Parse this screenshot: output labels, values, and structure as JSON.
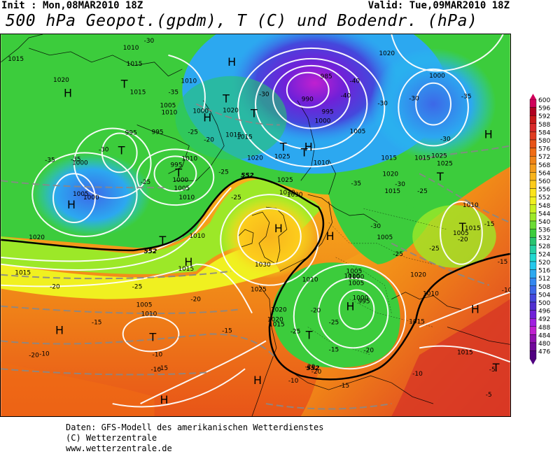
{
  "header": {
    "init": "Init : Mon,08MAR2010 18Z",
    "valid": "Valid: Tue,09MAR2010 18Z",
    "title": "500 hPa Geopot.(gpdm), T (C) und Bodendr. (hPa)"
  },
  "legend": {
    "labels": [
      "600",
      "596",
      "592",
      "588",
      "584",
      "580",
      "576",
      "572",
      "568",
      "564",
      "560",
      "556",
      "552",
      "548",
      "544",
      "540",
      "536",
      "532",
      "528",
      "524",
      "520",
      "516",
      "512",
      "508",
      "504",
      "500",
      "496",
      "492",
      "488",
      "484",
      "480",
      "476"
    ],
    "colors": [
      "#d0005a",
      "#b00020",
      "#c81818",
      "#d82828",
      "#e03c20",
      "#e85418",
      "#f06c14",
      "#f08418",
      "#f49c1c",
      "#f8b41c",
      "#fccc1c",
      "#fce41c",
      "#f0f020",
      "#c8f020",
      "#9ce828",
      "#6cdc34",
      "#3ccc3c",
      "#28c470",
      "#24d0a4",
      "#20d8d0",
      "#24c8ec",
      "#2ca8f0",
      "#3488f0",
      "#3c68e8",
      "#4448dc",
      "#5030d0",
      "#7020d8",
      "#a020e0",
      "#c020d0",
      "#9010b0",
      "#70089a",
      "#500080"
    ]
  },
  "pressure_labels": [
    "1010",
    "1015",
    "1015",
    "1020",
    "1015",
    "1010",
    "1010",
    "1005",
    "1000",
    "995",
    "995",
    "995",
    "1000",
    "1005",
    "1010",
    "1000",
    "1005",
    "1015",
    "1020",
    "1015",
    "1020",
    "1025",
    "1010",
    "1030",
    "1025",
    "1030",
    "1020",
    "1025",
    "1020",
    "1015",
    "1015",
    "1010",
    "1005",
    "1000",
    "995",
    "1000",
    "1005",
    "1010",
    "1015",
    "1020",
    "985",
    "990",
    "995",
    "1000",
    "1005",
    "1000",
    "1005",
    "1010",
    "1015",
    "1020",
    "1025",
    "1015",
    "1020",
    "1015",
    "1020",
    "1010",
    "1005",
    "1010",
    "1015",
    "1010",
    "1015",
    "1025",
    "1005",
    "1015",
    "1030",
    "1000",
    "1010"
  ],
  "temp_labels": [
    "-30",
    "-35",
    "-35",
    "-30",
    "-25",
    "-20",
    "-25",
    "-25",
    "-25",
    "-20",
    "-15",
    "-20",
    "-25",
    "-20",
    "-10",
    "-10",
    "-15",
    "-10",
    "-5",
    "-10",
    "-20",
    "-25",
    "-15",
    "-20",
    "-25",
    "-30",
    "-30",
    "-35",
    "-40",
    "-30",
    "-25",
    "-30",
    "-35",
    "-30",
    "-25",
    "-20",
    "-15",
    "-15",
    "-10",
    "-5",
    "-25",
    "-20",
    "-15",
    "-10",
    "-35",
    "-40",
    "-30",
    "-20",
    "-15"
  ],
  "centers": [
    "H",
    "T",
    "H",
    "T",
    "T",
    "H",
    "T",
    "T",
    "H",
    "H",
    "T",
    "H",
    "T",
    "H",
    "T",
    "T",
    "H",
    "H",
    "H",
    "T",
    "T",
    "H",
    "H",
    "H",
    "T",
    "H",
    "T"
  ],
  "contour_labels": [
    "552",
    "552",
    "552"
  ],
  "footer": {
    "line1": "Daten: GFS-Modell des amerikanischen Wetterdienstes",
    "line2": "(C) Wetterzentrale",
    "line3": "www.wetterzentrale.de"
  }
}
